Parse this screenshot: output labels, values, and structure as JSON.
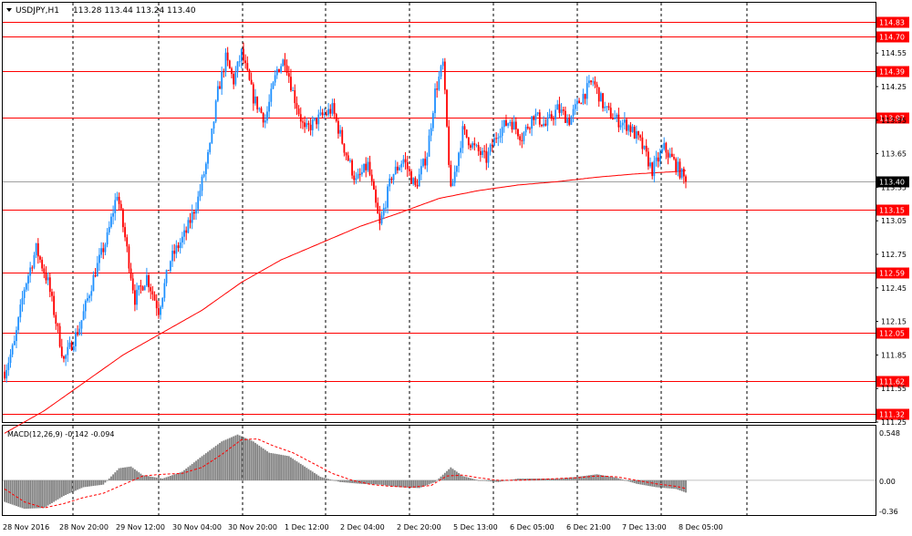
{
  "header": {
    "symbol_label": "USDJPY,H1",
    "ohlc_label": "113.28 113.44 113.24 113.40"
  },
  "macd": {
    "label": "MACD(12,26,9) -0.142 -0.094",
    "ticks": [
      "0.548",
      "0.00",
      "-0.36"
    ]
  },
  "colors": {
    "bull": "#1e90ff",
    "bear": "#ff0000",
    "ma": "#ff0000",
    "level": "#ff0000",
    "grid": "#000000",
    "hist": "#808080",
    "signal": "#ff0000",
    "current": "#000000"
  },
  "chart_data": {
    "type": "candlestick",
    "timeframe": "H1",
    "y_range": [
      111.25,
      115.0
    ],
    "price_ticks": [
      "114.55",
      "114.25",
      "113.95",
      "113.65",
      "113.35",
      "113.05",
      "112.75",
      "112.45",
      "112.15",
      "111.85",
      "111.55",
      "111.25"
    ],
    "levels": [
      "114.83",
      "114.70",
      "114.39",
      "113.97",
      "113.15",
      "112.59",
      "112.05",
      "111.62",
      "111.32"
    ],
    "current_price": "113.40",
    "x_labels": [
      "28 Nov 2016",
      "28 Nov 20:00",
      "29 Nov 12:00",
      "30 Nov 04:00",
      "30 Nov 20:00",
      "1 Dec 12:00",
      "2 Dec 04:00",
      "2 Dec 20:00",
      "5 Dec 13:00",
      "6 Dec 05:00",
      "6 Dec 21:00",
      "7 Dec 13:00",
      "8 Dec 05:00"
    ],
    "price_anchors": [
      [
        0,
        111.7
      ],
      [
        5,
        111.95
      ],
      [
        10,
        112.45
      ],
      [
        16,
        112.8
      ],
      [
        22,
        112.5
      ],
      [
        30,
        111.8
      ],
      [
        38,
        112.1
      ],
      [
        46,
        112.6
      ],
      [
        52,
        112.9
      ],
      [
        57,
        113.3
      ],
      [
        61,
        112.9
      ],
      [
        66,
        112.35
      ],
      [
        72,
        112.55
      ],
      [
        78,
        112.25
      ],
      [
        84,
        112.7
      ],
      [
        92,
        112.95
      ],
      [
        98,
        113.25
      ],
      [
        104,
        113.7
      ],
      [
        108,
        114.2
      ],
      [
        112,
        114.5
      ],
      [
        116,
        114.3
      ],
      [
        120,
        114.55
      ],
      [
        126,
        114.15
      ],
      [
        132,
        113.95
      ],
      [
        138,
        114.4
      ],
      [
        142,
        114.5
      ],
      [
        146,
        114.2
      ],
      [
        152,
        113.85
      ],
      [
        158,
        113.95
      ],
      [
        166,
        114.05
      ],
      [
        172,
        113.7
      ],
      [
        178,
        113.4
      ],
      [
        184,
        113.55
      ],
      [
        190,
        113.0
      ],
      [
        196,
        113.45
      ],
      [
        202,
        113.6
      ],
      [
        208,
        113.35
      ],
      [
        214,
        113.65
      ],
      [
        218,
        114.2
      ],
      [
        222,
        114.45
      ],
      [
        226,
        113.3
      ],
      [
        232,
        113.85
      ],
      [
        238,
        113.7
      ],
      [
        244,
        113.6
      ],
      [
        250,
        113.85
      ],
      [
        256,
        113.95
      ],
      [
        262,
        113.8
      ],
      [
        268,
        114.0
      ],
      [
        274,
        113.9
      ],
      [
        280,
        114.05
      ],
      [
        286,
        113.95
      ],
      [
        292,
        114.15
      ],
      [
        298,
        114.3
      ],
      [
        304,
        114.05
      ],
      [
        310,
        113.95
      ],
      [
        316,
        113.9
      ],
      [
        322,
        113.75
      ],
      [
        328,
        113.5
      ],
      [
        334,
        113.7
      ],
      [
        340,
        113.55
      ],
      [
        345,
        113.4
      ]
    ],
    "ma_anchors": [
      [
        0,
        111.15
      ],
      [
        20,
        111.35
      ],
      [
        40,
        111.6
      ],
      [
        60,
        111.85
      ],
      [
        80,
        112.05
      ],
      [
        100,
        112.25
      ],
      [
        120,
        112.5
      ],
      [
        140,
        112.7
      ],
      [
        160,
        112.85
      ],
      [
        180,
        113.0
      ],
      [
        200,
        113.12
      ],
      [
        220,
        113.25
      ],
      [
        240,
        113.32
      ],
      [
        260,
        113.37
      ],
      [
        280,
        113.4
      ],
      [
        300,
        113.44
      ],
      [
        320,
        113.47
      ],
      [
        340,
        113.49
      ],
      [
        345,
        113.5
      ]
    ],
    "macd_anchors": [
      [
        0,
        -0.25
      ],
      [
        10,
        -0.33
      ],
      [
        20,
        -0.32
      ],
      [
        30,
        -0.18
      ],
      [
        40,
        -0.08
      ],
      [
        50,
        -0.05
      ],
      [
        58,
        0.14
      ],
      [
        64,
        0.16
      ],
      [
        70,
        0.06
      ],
      [
        80,
        0.02
      ],
      [
        90,
        0.1
      ],
      [
        100,
        0.28
      ],
      [
        110,
        0.45
      ],
      [
        118,
        0.53
      ],
      [
        126,
        0.45
      ],
      [
        134,
        0.32
      ],
      [
        144,
        0.28
      ],
      [
        152,
        0.16
      ],
      [
        160,
        0.04
      ],
      [
        170,
        -0.02
      ],
      [
        180,
        -0.04
      ],
      [
        190,
        -0.05
      ],
      [
        200,
        -0.08
      ],
      [
        210,
        -0.09
      ],
      [
        218,
        -0.02
      ],
      [
        226,
        0.15
      ],
      [
        232,
        0.05
      ],
      [
        240,
        0.0
      ],
      [
        250,
        -0.02
      ],
      [
        260,
        0.02
      ],
      [
        270,
        0.02
      ],
      [
        280,
        0.02
      ],
      [
        290,
        0.04
      ],
      [
        300,
        0.07
      ],
      [
        310,
        0.03
      ],
      [
        320,
        -0.04
      ],
      [
        330,
        -0.08
      ],
      [
        340,
        -0.1
      ],
      [
        345,
        -0.142
      ]
    ],
    "signal_anchors": [
      [
        0,
        -0.1
      ],
      [
        10,
        -0.25
      ],
      [
        20,
        -0.32
      ],
      [
        30,
        -0.27
      ],
      [
        40,
        -0.2
      ],
      [
        50,
        -0.15
      ],
      [
        60,
        -0.05
      ],
      [
        70,
        0.05
      ],
      [
        80,
        0.07
      ],
      [
        90,
        0.08
      ],
      [
        100,
        0.15
      ],
      [
        110,
        0.3
      ],
      [
        120,
        0.47
      ],
      [
        128,
        0.48
      ],
      [
        136,
        0.4
      ],
      [
        146,
        0.32
      ],
      [
        156,
        0.2
      ],
      [
        166,
        0.08
      ],
      [
        176,
        0.0
      ],
      [
        186,
        -0.05
      ],
      [
        196,
        -0.07
      ],
      [
        206,
        -0.08
      ],
      [
        216,
        -0.06
      ],
      [
        224,
        0.05
      ],
      [
        232,
        0.06
      ],
      [
        240,
        0.03
      ],
      [
        250,
        0.0
      ],
      [
        260,
        0.0
      ],
      [
        270,
        0.01
      ],
      [
        280,
        0.02
      ],
      [
        290,
        0.03
      ],
      [
        300,
        0.05
      ],
      [
        310,
        0.04
      ],
      [
        320,
        0.0
      ],
      [
        330,
        -0.04
      ],
      [
        340,
        -0.07
      ],
      [
        345,
        -0.094
      ]
    ]
  }
}
